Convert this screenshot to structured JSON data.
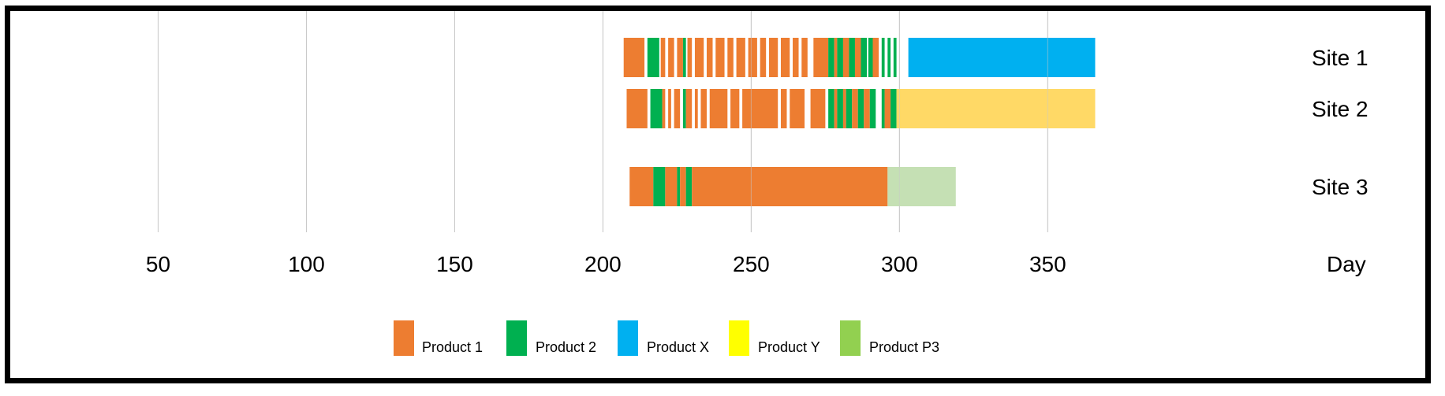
{
  "chart_data": {
    "type": "gantt",
    "xlabel": "Day",
    "xticks": [
      50,
      100,
      150,
      200,
      250,
      300,
      350
    ],
    "xlim": [
      0,
      400
    ],
    "grid": true,
    "legend_position": "bottom",
    "legend": [
      {
        "name": "Product 1",
        "color": "#ED7D31"
      },
      {
        "name": "Product 2",
        "color": "#00B050"
      },
      {
        "name": "Product X",
        "color": "#00B0F0"
      },
      {
        "name": "Product Y",
        "color": "#FFFF00"
      },
      {
        "name": "Product P3",
        "color": "#92D050"
      }
    ],
    "rows": [
      {
        "label": "Site 1",
        "segments": [
          {
            "product": "Product 1",
            "start": 207,
            "end": 214
          },
          {
            "product": "Product 2",
            "start": 215,
            "end": 219
          },
          {
            "product": "Product 1",
            "start": 219.5,
            "end": 221
          },
          {
            "product": "Product 1",
            "start": 222,
            "end": 224
          },
          {
            "product": "Product 1",
            "start": 225,
            "end": 227
          },
          {
            "product": "Product 2",
            "start": 227,
            "end": 228
          },
          {
            "product": "Product 1",
            "start": 228.5,
            "end": 230
          },
          {
            "product": "Product 1",
            "start": 231,
            "end": 234
          },
          {
            "product": "Product 1",
            "start": 235,
            "end": 237
          },
          {
            "product": "Product 1",
            "start": 238,
            "end": 241
          },
          {
            "product": "Product 1",
            "start": 242,
            "end": 244
          },
          {
            "product": "Product 1",
            "start": 245,
            "end": 248
          },
          {
            "product": "Product 1",
            "start": 249,
            "end": 252
          },
          {
            "product": "Product 1",
            "start": 253,
            "end": 255
          },
          {
            "product": "Product 1",
            "start": 256,
            "end": 259
          },
          {
            "product": "Product 1",
            "start": 260,
            "end": 263
          },
          {
            "product": "Product 1",
            "start": 264,
            "end": 266
          },
          {
            "product": "Product 1",
            "start": 267,
            "end": 269
          },
          {
            "product": "Product 1",
            "start": 271,
            "end": 276
          },
          {
            "product": "Product 2",
            "start": 276,
            "end": 278
          },
          {
            "product": "Product 1",
            "start": 278,
            "end": 279
          },
          {
            "product": "Product 2",
            "start": 279,
            "end": 281
          },
          {
            "product": "Product 1",
            "start": 281,
            "end": 283
          },
          {
            "product": "Product 2",
            "start": 283,
            "end": 285
          },
          {
            "product": "Product 1",
            "start": 285,
            "end": 287
          },
          {
            "product": "Product 2",
            "start": 287,
            "end": 289
          },
          {
            "product": "Product 2",
            "start": 289.5,
            "end": 291
          },
          {
            "product": "Product 1",
            "start": 291,
            "end": 293
          },
          {
            "product": "Product 2",
            "start": 294,
            "end": 295
          },
          {
            "product": "Product 2",
            "start": 296,
            "end": 297
          },
          {
            "product": "Product 2",
            "start": 298,
            "end": 299
          },
          {
            "product": "Product X",
            "start": 303,
            "end": 366
          }
        ]
      },
      {
        "label": "Site 2",
        "segments": [
          {
            "product": "Product 1",
            "start": 208,
            "end": 215
          },
          {
            "product": "Product 2",
            "start": 216,
            "end": 220
          },
          {
            "product": "Product 1",
            "start": 220,
            "end": 221
          },
          {
            "product": "Product 1",
            "start": 222,
            "end": 223
          },
          {
            "product": "Product 1",
            "start": 224,
            "end": 226
          },
          {
            "product": "Product 2",
            "start": 227,
            "end": 228
          },
          {
            "product": "Product 1",
            "start": 228,
            "end": 230
          },
          {
            "product": "Product 1",
            "start": 231,
            "end": 232
          },
          {
            "product": "Product 1",
            "start": 233,
            "end": 235
          },
          {
            "product": "Product 1",
            "start": 236,
            "end": 242
          },
          {
            "product": "Product 1",
            "start": 243,
            "end": 246
          },
          {
            "product": "Product 1",
            "start": 247,
            "end": 259
          },
          {
            "product": "Product 1",
            "start": 260,
            "end": 262
          },
          {
            "product": "Product 1",
            "start": 263,
            "end": 268
          },
          {
            "product": "Product 1",
            "start": 270,
            "end": 275
          },
          {
            "product": "Product 2",
            "start": 276,
            "end": 278
          },
          {
            "product": "Product 1",
            "start": 278,
            "end": 279
          },
          {
            "product": "Product 2",
            "start": 279,
            "end": 281
          },
          {
            "product": "Product 1",
            "start": 281,
            "end": 282
          },
          {
            "product": "Product 2",
            "start": 282,
            "end": 284
          },
          {
            "product": "Product 1",
            "start": 284,
            "end": 286
          },
          {
            "product": "Product 2",
            "start": 286,
            "end": 288
          },
          {
            "product": "Product 1",
            "start": 288,
            "end": 290
          },
          {
            "product": "Product 2",
            "start": 290,
            "end": 292
          },
          {
            "product": "Product 2",
            "start": 294,
            "end": 295
          },
          {
            "product": "Product 1",
            "start": 295,
            "end": 297
          },
          {
            "product": "Product 2",
            "start": 297,
            "end": 299
          },
          {
            "product": "Product Y",
            "start": 299,
            "end": 366
          }
        ]
      },
      {
        "label": "Site 3",
        "segments": [
          {
            "product": "Product 1",
            "start": 209,
            "end": 217
          },
          {
            "product": "Product 2",
            "start": 217,
            "end": 221
          },
          {
            "product": "Product 1",
            "start": 221,
            "end": 225
          },
          {
            "product": "Product 2",
            "start": 225,
            "end": 226
          },
          {
            "product": "Product 1",
            "start": 226,
            "end": 228
          },
          {
            "product": "Product 2",
            "start": 228,
            "end": 230
          },
          {
            "product": "Product 1",
            "start": 230,
            "end": 296
          },
          {
            "product": "Product P3",
            "start": 296,
            "end": 319
          }
        ]
      }
    ]
  }
}
